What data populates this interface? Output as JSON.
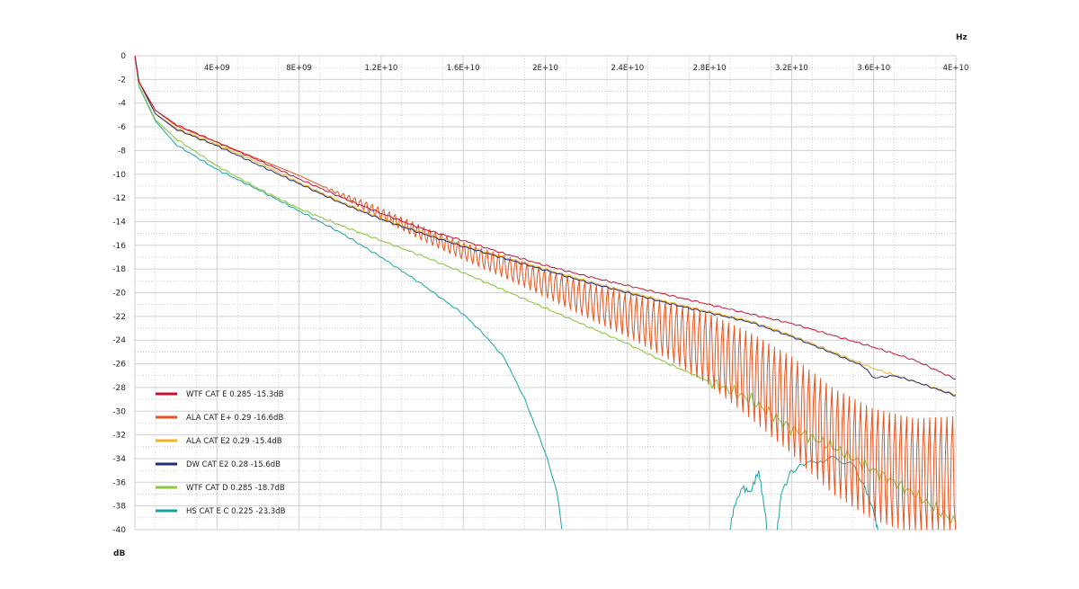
{
  "chart_data": {
    "type": "line",
    "xlabel": "Hz",
    "ylabel": "dB",
    "xlim": [
      0,
      40000000000
    ],
    "ylim": [
      -40,
      0
    ],
    "grid": true,
    "legend_position": "bottom-left",
    "x_ticks": [
      {
        "value": 4000000000,
        "label": "4E+09"
      },
      {
        "value": 8000000000,
        "label": "8E+09"
      },
      {
        "value": 12000000000,
        "label": "1.2E+10"
      },
      {
        "value": 16000000000,
        "label": "1.6E+10"
      },
      {
        "value": 20000000000,
        "label": "2E+10"
      },
      {
        "value": 24000000000,
        "label": "2.4E+10"
      },
      {
        "value": 28000000000,
        "label": "2.8E+10"
      },
      {
        "value": 32000000000,
        "label": "3.2E+10"
      },
      {
        "value": 36000000000,
        "label": "3.6E+10"
      },
      {
        "value": 40000000000,
        "label": "4E+10"
      }
    ],
    "y_ticks": [
      {
        "value": 0,
        "label": "0"
      },
      {
        "value": -2,
        "label": "-2"
      },
      {
        "value": -4,
        "label": "-4"
      },
      {
        "value": -6,
        "label": "-6"
      },
      {
        "value": -8,
        "label": "-8"
      },
      {
        "value": -10,
        "label": "-10"
      },
      {
        "value": -12,
        "label": "-12"
      },
      {
        "value": -14,
        "label": "-14"
      },
      {
        "value": -16,
        "label": "-16"
      },
      {
        "value": -18,
        "label": "-18"
      },
      {
        "value": -20,
        "label": "-20"
      },
      {
        "value": -22,
        "label": "-22"
      },
      {
        "value": -24,
        "label": "-24"
      },
      {
        "value": -26,
        "label": "-26"
      },
      {
        "value": -28,
        "label": "-28"
      },
      {
        "value": -30,
        "label": "-30"
      },
      {
        "value": -32,
        "label": "-32"
      },
      {
        "value": -34,
        "label": "-34"
      },
      {
        "value": -36,
        "label": "-36"
      },
      {
        "value": -38,
        "label": "-38"
      },
      {
        "value": -40,
        "label": "-40"
      }
    ],
    "series": [
      {
        "name": "WTF CAT E 0.285 -15.3dB",
        "color": "#c8102e",
        "points": [
          [
            0,
            0
          ],
          [
            0.2,
            -2.2
          ],
          [
            1,
            -4.6
          ],
          [
            2,
            -5.8
          ],
          [
            4,
            -7.3
          ],
          [
            6,
            -8.8
          ],
          [
            8,
            -10.4
          ],
          [
            10,
            -11.9
          ],
          [
            12,
            -13.3
          ],
          [
            14,
            -14.6
          ],
          [
            16,
            -15.6
          ],
          [
            18,
            -16.7
          ],
          [
            20,
            -17.7
          ],
          [
            22,
            -18.6
          ],
          [
            24,
            -19.4
          ],
          [
            26,
            -20.2
          ],
          [
            28,
            -21
          ],
          [
            30,
            -21.8
          ],
          [
            32,
            -22.6
          ],
          [
            34,
            -23.6
          ],
          [
            36,
            -24.6
          ],
          [
            38,
            -25.7
          ],
          [
            40,
            -27.3
          ]
        ]
      },
      {
        "name": "ALA CAT E+ 0.29 -16.6dB",
        "color": "#e8531f",
        "points": [
          [
            0,
            0
          ],
          [
            0.2,
            -2.2
          ],
          [
            1,
            -4.6
          ],
          [
            2,
            -5.9
          ],
          [
            4,
            -7.3
          ],
          [
            6,
            -8.7
          ],
          [
            8,
            -10.1
          ],
          [
            10,
            -11.7
          ],
          [
            12,
            -13.3
          ],
          [
            14,
            -15
          ],
          [
            16,
            -16.5
          ],
          [
            18,
            -17.8
          ],
          [
            20,
            -19.2
          ],
          [
            22,
            -20.6
          ],
          [
            24,
            -21.9
          ],
          [
            26,
            -23.2
          ],
          [
            28,
            -24.8
          ],
          [
            30,
            -27
          ],
          [
            32,
            -29.5
          ],
          [
            34,
            -32.5
          ],
          [
            36,
            -34.5
          ],
          [
            38,
            -35.5
          ],
          [
            40,
            -35.5
          ]
        ],
        "oscillation": [
          [
            0,
            0
          ],
          [
            9,
            0
          ],
          [
            11,
            0.4
          ],
          [
            13,
            0.6
          ],
          [
            16,
            0.8
          ],
          [
            20,
            1.3
          ],
          [
            24,
            2
          ],
          [
            27,
            3
          ],
          [
            30,
            4
          ],
          [
            33,
            4.8
          ],
          [
            36,
            5.2
          ],
          [
            40,
            5.6
          ]
        ]
      },
      {
        "name": "ALA CAT E2 0.29 -15.4dB",
        "color": "#f0b323",
        "points": [
          [
            0,
            0
          ],
          [
            0.2,
            -2.2
          ],
          [
            1,
            -4.9
          ],
          [
            2,
            -6.1
          ],
          [
            4,
            -7.5
          ],
          [
            6,
            -9
          ],
          [
            8,
            -10.7
          ],
          [
            10,
            -12.3
          ],
          [
            12,
            -13.7
          ],
          [
            14,
            -14.9
          ],
          [
            16,
            -16
          ],
          [
            18,
            -17
          ],
          [
            20,
            -18
          ],
          [
            22,
            -19
          ],
          [
            24,
            -19.9
          ],
          [
            26,
            -20.8
          ],
          [
            28,
            -21.6
          ],
          [
            30,
            -22.4
          ],
          [
            32,
            -23.6
          ],
          [
            34,
            -25
          ],
          [
            36,
            -26.4
          ],
          [
            38,
            -27.5
          ],
          [
            40,
            -28.6
          ]
        ]
      },
      {
        "name": "DW CAT E2 0.28 -15.6dB",
        "color": "#1f2a7a",
        "points": [
          [
            0,
            0
          ],
          [
            0.2,
            -2.2
          ],
          [
            1,
            -4.9
          ],
          [
            2,
            -6.2
          ],
          [
            4,
            -7.6
          ],
          [
            6,
            -9.2
          ],
          [
            8,
            -10.8
          ],
          [
            10,
            -12.4
          ],
          [
            12,
            -13.8
          ],
          [
            14,
            -15
          ],
          [
            16,
            -16.1
          ],
          [
            18,
            -17.1
          ],
          [
            20,
            -18.1
          ],
          [
            22,
            -19.1
          ],
          [
            24,
            -20
          ],
          [
            26,
            -20.9
          ],
          [
            28,
            -21.7
          ],
          [
            30,
            -22.5
          ],
          [
            32,
            -23.7
          ],
          [
            34,
            -25.1
          ],
          [
            35.5,
            -26.2
          ],
          [
            36,
            -27.2
          ],
          [
            37,
            -27
          ],
          [
            38,
            -27.5
          ],
          [
            40,
            -28.7
          ]
        ]
      },
      {
        "name": "WTF CAT D 0.285 -18.7dB",
        "color": "#8dc63f",
        "points": [
          [
            0,
            0
          ],
          [
            0.2,
            -2.5
          ],
          [
            1,
            -5.4
          ],
          [
            2,
            -7
          ],
          [
            4,
            -9.3
          ],
          [
            6,
            -11.2
          ],
          [
            8,
            -12.9
          ],
          [
            10,
            -14.3
          ],
          [
            12,
            -15.6
          ],
          [
            14,
            -16.9
          ],
          [
            16,
            -18.3
          ],
          [
            18,
            -19.8
          ],
          [
            20,
            -21.3
          ],
          [
            22,
            -22.8
          ],
          [
            24,
            -24.3
          ],
          [
            26,
            -26
          ],
          [
            28,
            -27.5
          ],
          [
            30,
            -29
          ],
          [
            32,
            -31.5
          ],
          [
            34,
            -33
          ],
          [
            36,
            -35
          ],
          [
            38,
            -37
          ],
          [
            40,
            -39.4
          ]
        ]
      },
      {
        "name": "HS CAT E C 0.225 -23.3dB",
        "color": "#1aa3a3",
        "points": [
          [
            0,
            0
          ],
          [
            0.2,
            -2.6
          ],
          [
            1,
            -5.5
          ],
          [
            2,
            -7.5
          ],
          [
            4,
            -9.6
          ],
          [
            6,
            -11.3
          ],
          [
            8,
            -13.1
          ],
          [
            10,
            -14.9
          ],
          [
            12,
            -17
          ],
          [
            14,
            -19.3
          ],
          [
            16,
            -21.8
          ],
          [
            17,
            -23.5
          ],
          [
            18,
            -25.5
          ],
          [
            19,
            -29
          ],
          [
            20,
            -33.5
          ],
          [
            20.6,
            -37
          ],
          [
            20.8,
            -40
          ]
        ],
        "late_segments": [
          [
            [
              29,
              -40
            ],
            [
              29.2,
              -38
            ],
            [
              29.6,
              -36.5
            ],
            [
              30,
              -36.8
            ],
            [
              30.4,
              -35
            ],
            [
              30.7,
              -38.5
            ],
            [
              30.8,
              -40
            ]
          ],
          [
            [
              31.3,
              -40
            ],
            [
              31.5,
              -37
            ],
            [
              32,
              -35
            ],
            [
              32.6,
              -34.6
            ],
            [
              33.4,
              -34.2
            ],
            [
              34.2,
              -34
            ],
            [
              35,
              -34.5
            ],
            [
              35.6,
              -36.5
            ],
            [
              36,
              -38.5
            ],
            [
              36.2,
              -40
            ]
          ]
        ]
      }
    ]
  }
}
